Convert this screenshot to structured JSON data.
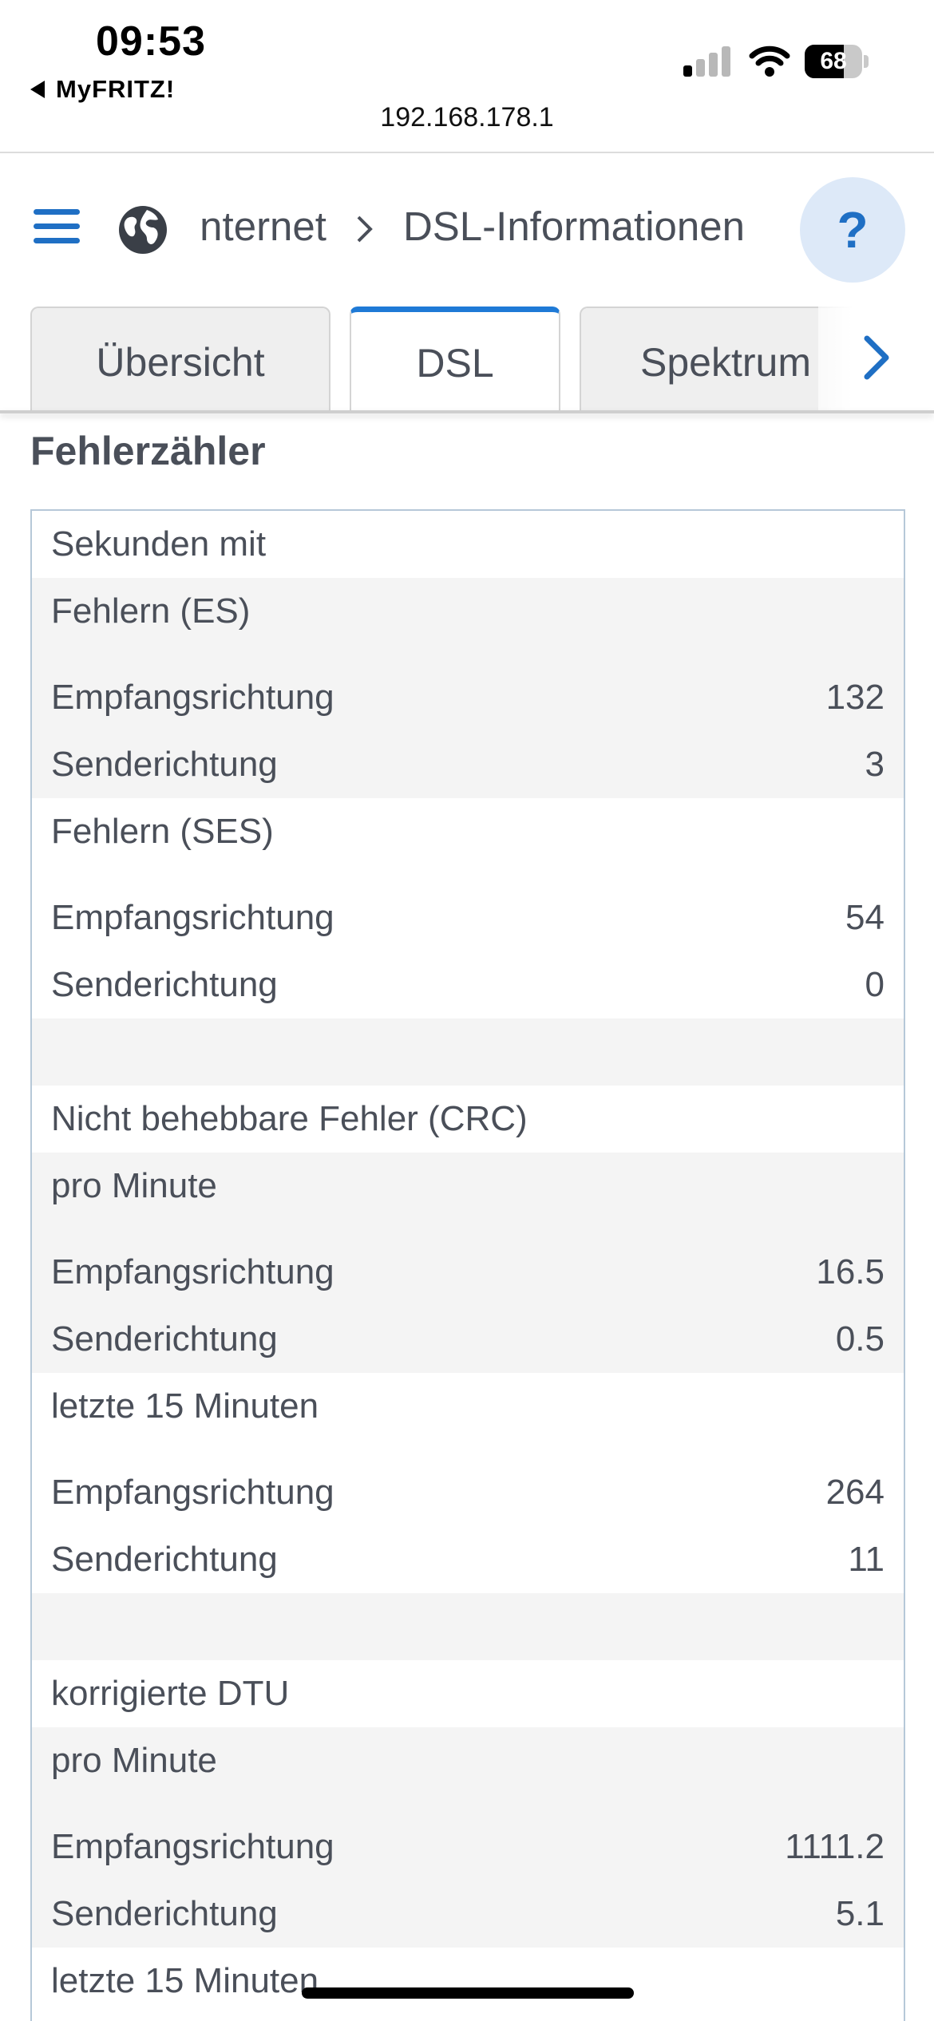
{
  "status_bar": {
    "time": "09:53",
    "back_app": "MyFRITZ!",
    "url": "192.168.178.1",
    "battery": "68"
  },
  "header": {
    "breadcrumb_parent": "Internet",
    "breadcrumb_current": "DSL-Informationen",
    "help_label": "?"
  },
  "tabs": [
    {
      "label": "Übersicht",
      "active": false
    },
    {
      "label": "DSL",
      "active": true
    },
    {
      "label": "Spektrum",
      "active": false
    }
  ],
  "section": {
    "title": "Fehlerzähler"
  },
  "rows": [
    {
      "label": "Sekunden mit",
      "value": ""
    },
    {
      "label": "Fehlern (ES)",
      "value": ""
    },
    {
      "label": "Empfangsrichtung",
      "value": "132"
    },
    {
      "label": "Senderichtung",
      "value": "3"
    },
    {
      "label": "Fehlern (SES)",
      "value": ""
    },
    {
      "label": "Empfangsrichtung",
      "value": "54"
    },
    {
      "label": "Senderichtung",
      "value": "0"
    },
    {
      "label": "",
      "value": ""
    },
    {
      "label": "Nicht behebbare Fehler (CRC)",
      "value": ""
    },
    {
      "label": "pro Minute",
      "value": ""
    },
    {
      "label": "Empfangsrichtung",
      "value": "16.5"
    },
    {
      "label": "Senderichtung",
      "value": "0.5"
    },
    {
      "label": "letzte 15 Minuten",
      "value": ""
    },
    {
      "label": "Empfangsrichtung",
      "value": "264"
    },
    {
      "label": "Senderichtung",
      "value": "11"
    },
    {
      "label": "",
      "value": ""
    },
    {
      "label": "korrigierte DTU",
      "value": ""
    },
    {
      "label": "pro Minute",
      "value": ""
    },
    {
      "label": "Empfangsrichtung",
      "value": "1111.2"
    },
    {
      "label": "Senderichtung",
      "value": "5.1"
    },
    {
      "label": "letzte 15 Minuten",
      "value": ""
    }
  ],
  "colors": {
    "accent": "#1f6fc4",
    "row_alt": "#f4f4f4",
    "text": "#4a4f59"
  }
}
